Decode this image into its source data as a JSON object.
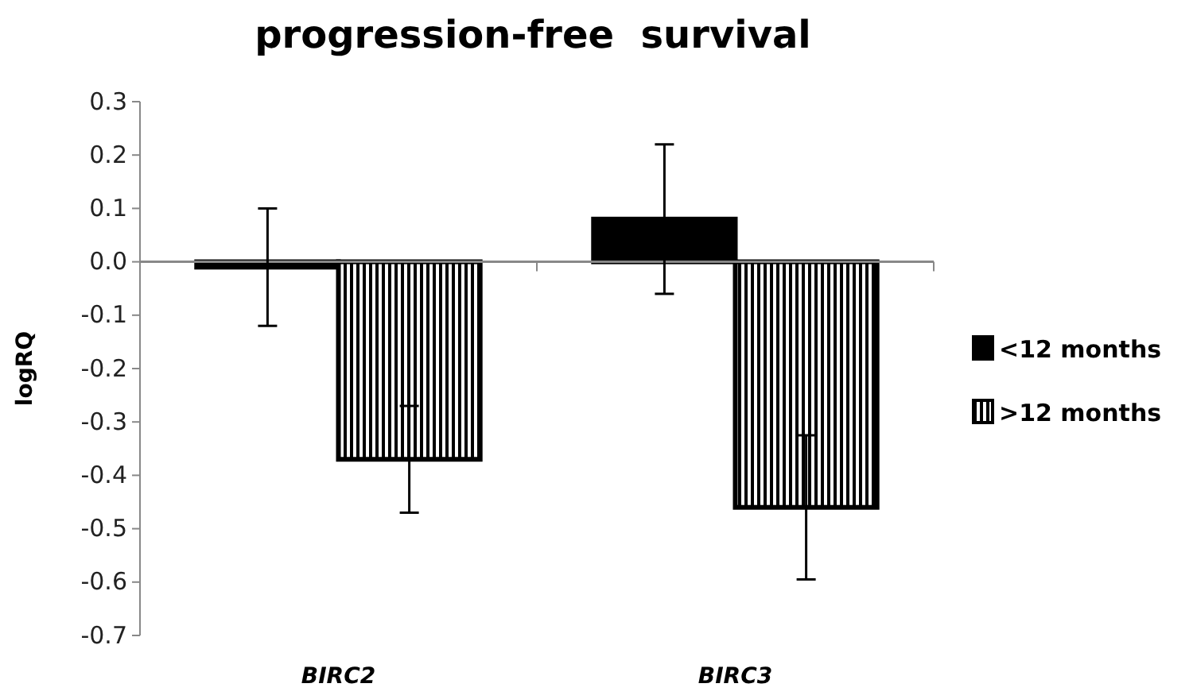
{
  "chart_data": {
    "type": "bar",
    "title": "progression-free  survival",
    "ylabel": "logRQ",
    "categories": [
      "BIRC2",
      "BIRC3"
    ],
    "series": [
      {
        "name": "<12 months",
        "color": "#000000",
        "values": [
          -0.01,
          0.08
        ],
        "errors": [
          0.11,
          0.14
        ]
      },
      {
        "name": ">12 months",
        "color": "#000000",
        "values": [
          -0.37,
          -0.46
        ],
        "errors": [
          0.1,
          0.135
        ]
      }
    ],
    "ylim": [
      -0.7,
      0.3
    ],
    "yticks": [
      {
        "value": -0.7,
        "label": "-0.7"
      },
      {
        "value": -0.6,
        "label": "-0.6"
      },
      {
        "value": -0.5,
        "label": "-0.5"
      },
      {
        "value": -0.4,
        "label": "-0.4"
      },
      {
        "value": -0.3,
        "label": "-0.3"
      },
      {
        "value": -0.2,
        "label": "-0.2"
      },
      {
        "value": -0.1,
        "label": "-0.1"
      },
      {
        "value": 0,
        "label": "0.0"
      },
      {
        "value": 0.1,
        "label": "0.1"
      },
      {
        "value": 0.2,
        "label": "0.2"
      },
      {
        "value": 0.3,
        "label": "0.3"
      }
    ],
    "legend": "right"
  }
}
